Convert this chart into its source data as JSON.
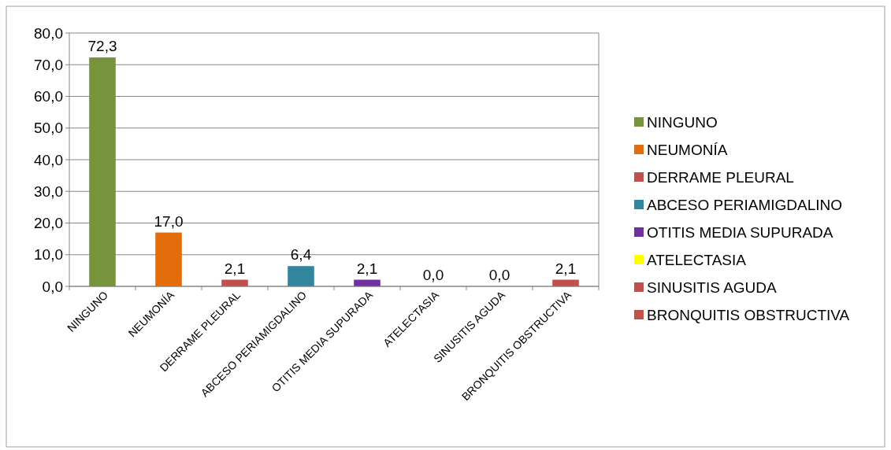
{
  "chart_data": {
    "type": "bar",
    "categories": [
      "NINGUNO",
      "NEUMONÍA",
      "DERRAME PLEURAL",
      "ABCESO PERIAMIGDALINO",
      "OTITIS MEDIA SUPURADA",
      "ATELECTASIA",
      "SINUSITIS AGUDA",
      "BRONQUITIS OBSTRUCTIVA"
    ],
    "series": [
      {
        "name": "NINGUNO",
        "color": "#77933c",
        "values": [
          72.3,
          null,
          null,
          null,
          null,
          null,
          null,
          null
        ],
        "value_labels": [
          "72,3",
          null,
          null,
          null,
          null,
          null,
          null,
          null
        ]
      },
      {
        "name": "NEUMONÍA",
        "color": "#e46c0a",
        "values": [
          null,
          17.0,
          null,
          null,
          null,
          null,
          null,
          null
        ],
        "value_labels": [
          null,
          "17,0",
          null,
          null,
          null,
          null,
          null,
          null
        ]
      },
      {
        "name": "DERRAME PLEURAL",
        "color": "#c0504d",
        "values": [
          null,
          null,
          2.1,
          null,
          null,
          null,
          null,
          null
        ],
        "value_labels": [
          null,
          null,
          "2,1",
          null,
          null,
          null,
          null,
          null
        ]
      },
      {
        "name": "ABCESO PERIAMIGDALINO",
        "color": "#31859c",
        "values": [
          null,
          null,
          null,
          6.4,
          null,
          null,
          null,
          null
        ],
        "value_labels": [
          null,
          null,
          null,
          "6,4",
          null,
          null,
          null,
          null
        ]
      },
      {
        "name": "OTITIS MEDIA SUPURADA",
        "color": "#7030a0",
        "values": [
          null,
          null,
          null,
          null,
          2.1,
          null,
          null,
          null
        ],
        "value_labels": [
          null,
          null,
          null,
          null,
          "2,1",
          null,
          null,
          null
        ]
      },
      {
        "name": "ATELECTASIA",
        "color": "#ffff00",
        "values": [
          null,
          null,
          null,
          null,
          null,
          0.0,
          null,
          null
        ],
        "value_labels": [
          null,
          null,
          null,
          null,
          null,
          "0,0",
          null,
          null
        ]
      },
      {
        "name": "SINUSITIS AGUDA",
        "color": "#c0504d",
        "values": [
          null,
          null,
          null,
          null,
          null,
          null,
          0.0,
          null
        ],
        "value_labels": [
          null,
          null,
          null,
          null,
          null,
          null,
          "0,0",
          null
        ]
      },
      {
        "name": "BRONQUITIS OBSTRUCTIVA",
        "color": "#c0504d",
        "values": [
          null,
          null,
          null,
          null,
          null,
          null,
          null,
          2.1
        ],
        "value_labels": [
          null,
          null,
          null,
          null,
          null,
          null,
          null,
          "2,1"
        ]
      }
    ],
    "ylim": [
      0,
      80
    ],
    "yticks": [
      {
        "value": 0,
        "label": "0,0"
      },
      {
        "value": 10,
        "label": "10,0"
      },
      {
        "value": 20,
        "label": "20,0"
      },
      {
        "value": 30,
        "label": "30,0"
      },
      {
        "value": 40,
        "label": "40,0"
      },
      {
        "value": 50,
        "label": "50,0"
      },
      {
        "value": 60,
        "label": "60,0"
      },
      {
        "value": 70,
        "label": "70,0"
      },
      {
        "value": 80,
        "label": "80,0"
      }
    ],
    "grid": "y",
    "legend": "right"
  }
}
